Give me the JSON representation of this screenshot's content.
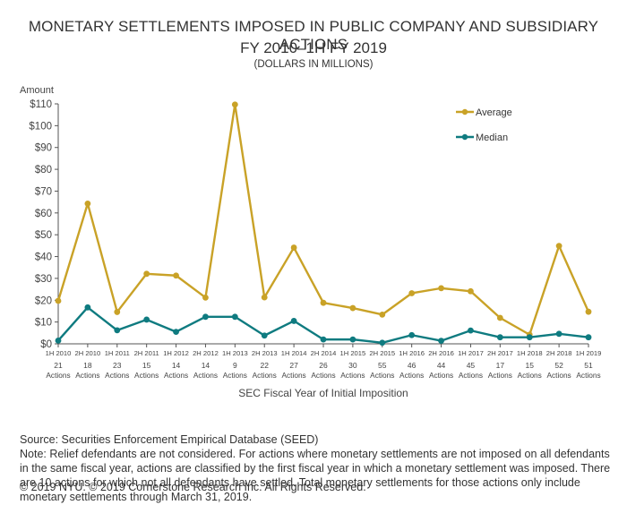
{
  "chart_data": {
    "type": "line",
    "title": "MONETARY SETTLEMENTS IMPOSED IN PUBLIC COMPANY AND SUBSIDIARY ACTIONS",
    "subtitle": "FY 2010–1H FY 2019",
    "units_note": "(DOLLARS IN MILLIONS)",
    "ylabel": "Amount",
    "xlabel": "SEC Fiscal Year of Initial Imposition",
    "ylim": [
      0,
      110
    ],
    "yticks": [
      0,
      10,
      20,
      30,
      40,
      50,
      60,
      70,
      80,
      90,
      100,
      110
    ],
    "ytick_labels": [
      "$0",
      "$10",
      "$20",
      "$30",
      "$40",
      "$50",
      "$60",
      "$70",
      "$80",
      "$90",
      "$100",
      "$110"
    ],
    "grid": false,
    "legend_position": "top-right",
    "categories": [
      "1H 2010",
      "2H 2010",
      "1H 2011",
      "2H 2011",
      "1H 2012",
      "2H 2012",
      "1H 2013",
      "2H 2013",
      "1H 2014",
      "2H 2014",
      "1H 2015",
      "2H 2015",
      "1H 2016",
      "2H 2016",
      "1H 2017",
      "2H 2017",
      "1H 2018",
      "2H 2018",
      "1H 2019"
    ],
    "action_counts": [
      "21",
      "18",
      "23",
      "15",
      "14",
      "14",
      "9",
      "22",
      "27",
      "26",
      "30",
      "55",
      "46",
      "44",
      "45",
      "17",
      "15",
      "52",
      "51"
    ],
    "actions_word": "Actions",
    "series": [
      {
        "name": "Average",
        "color": "#C9A227",
        "values": [
          19.7,
          64.3,
          14.6,
          32.1,
          31.3,
          21.2,
          109.7,
          21.3,
          44.1,
          18.8,
          16.4,
          13.4,
          23.2,
          25.5,
          24.1,
          11.9,
          4.2,
          44.9,
          14.7
        ]
      },
      {
        "name": "Median",
        "color": "#0F7B80",
        "values": [
          1.5,
          16.7,
          6.2,
          11.1,
          5.5,
          12.4,
          12.4,
          3.8,
          10.5,
          2.0,
          2.0,
          0.5,
          4.0,
          1.4,
          6.1,
          3.0,
          3.0,
          4.6,
          3.0
        ]
      }
    ]
  },
  "footer": {
    "source": "Source: Securities Enforcement Empirical Database (SEED)",
    "note": "Note:  Relief defendants are not considered. For actions where monetary settlements are not imposed on all defendants in the same fiscal year, actions are classified by the first fiscal year in which a monetary settlement was imposed. There are 10 actions for which not all defendants have settled. Total monetary settlements for those actions only include monetary settlements through March 31, 2019.",
    "copyright": "© 2019 NYU. © 2019 Cornerstone Research Inc. All Rights Reserved."
  }
}
